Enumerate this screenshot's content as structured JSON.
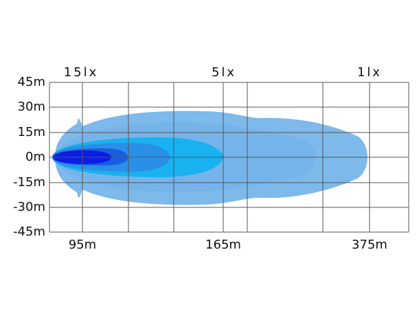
{
  "y_axis_labels": [
    "45m",
    "30m",
    "15m",
    "0m",
    "-15m",
    "-30m",
    "-45m"
  ],
  "lux_labels": [
    "15lx",
    "5lx",
    "1lx"
  ],
  "distance_labels": [
    "95m",
    "165m",
    "375m"
  ]
}
